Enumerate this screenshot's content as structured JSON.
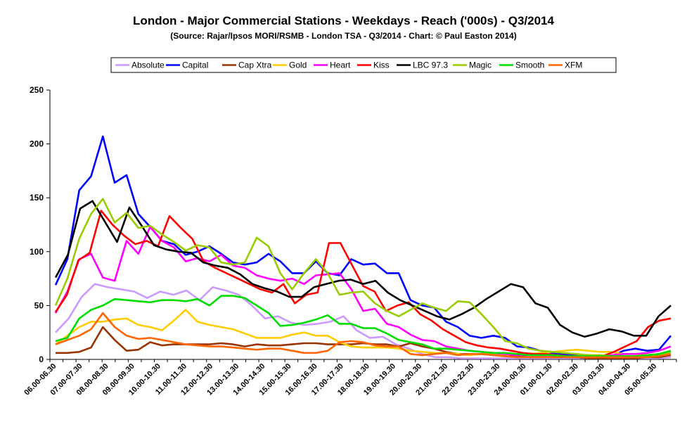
{
  "chart_data": {
    "type": "line",
    "title": "London - Major Commercial Stations - Weekdays - Reach ('000s) - Q3/2014",
    "subtitle": "(Source: Rajar/Ipsos MORI/RSMB - London TSA - Q3/2014 - Chart: © Paul Easton 2014)",
    "xlabel": "",
    "ylabel": "",
    "ylim": [
      0,
      250
    ],
    "yticks": [
      0,
      50,
      100,
      150,
      200,
      250
    ],
    "grid": false,
    "legend": "top",
    "x_tick_labels": [
      "06.00-06.30",
      "07.00-07.30",
      "08.00-08.30",
      "09.00-09.30",
      "10.00-10.30",
      "11.00-11.30",
      "12.00-12.30",
      "13.00-13.30",
      "14.00-14.30",
      "15.00-15.30",
      "16.00-16.30",
      "17.00-17.30",
      "18.00-18.30",
      "19.00-19.30",
      "20.00-20.30",
      "21.00-21.30",
      "22.00-22.30",
      "23.00-23.30",
      "24.00-00.30",
      "01.00-01.30",
      "02.00-02.30",
      "03.00-03.30",
      "04.00-04.30",
      "05.00-05.30"
    ],
    "series": [
      {
        "name": "Absolute",
        "color": "#cc99ff",
        "values": [
          25,
          38,
          58,
          70,
          67,
          65,
          63,
          57,
          63,
          60,
          64,
          55,
          67,
          64,
          60,
          50,
          38,
          40,
          34,
          32,
          33,
          35,
          40,
          27,
          20,
          21,
          14,
          10,
          5,
          2,
          2,
          1,
          1,
          1,
          1,
          1,
          1,
          1,
          1,
          1,
          1,
          1,
          1,
          1,
          1,
          1,
          1,
          2
        ]
      },
      {
        "name": "Capital",
        "color": "#0000ff",
        "values": [
          69,
          93,
          157,
          170,
          207,
          164,
          171,
          135,
          123,
          110,
          107,
          97,
          100,
          105,
          98,
          90,
          88,
          90,
          98,
          91,
          80,
          80,
          91,
          80,
          78,
          93,
          88,
          89,
          80,
          80,
          55,
          50,
          48,
          35,
          30,
          22,
          20,
          22,
          20,
          12,
          11,
          8,
          6,
          5,
          4,
          4,
          3,
          3,
          8,
          10,
          8,
          9,
          22
        ]
      },
      {
        "name": "Cap Xtra",
        "color": "#993300",
        "values": [
          6,
          6,
          7,
          11,
          30,
          18,
          8,
          9,
          16,
          13,
          14,
          14,
          14,
          14,
          15,
          14,
          12,
          14,
          13,
          13,
          14,
          15,
          15,
          14,
          14,
          14,
          15,
          14,
          14,
          12,
          15,
          12,
          10,
          7,
          5,
          5,
          5,
          4,
          3,
          3,
          2,
          2,
          2,
          2,
          2,
          1,
          1,
          1,
          1,
          1,
          2,
          2,
          4
        ]
      },
      {
        "name": "Gold",
        "color": "#ffcc00",
        "values": [
          14,
          22,
          30,
          35,
          35,
          37,
          38,
          32,
          30,
          27,
          36,
          46,
          35,
          32,
          30,
          28,
          24,
          20,
          20,
          20,
          23,
          25,
          22,
          22,
          16,
          12,
          11,
          11,
          11,
          10,
          8,
          7,
          6,
          6,
          5,
          4,
          5,
          5,
          4,
          5,
          5,
          6,
          7,
          8,
          9,
          8,
          7,
          7,
          5,
          5,
          4,
          5,
          6
        ]
      },
      {
        "name": "Heart",
        "color": "#ff00ff",
        "values": [
          43,
          63,
          93,
          98,
          76,
          73,
          110,
          98,
          123,
          110,
          104,
          91,
          94,
          91,
          97,
          87,
          85,
          78,
          75,
          73,
          75,
          70,
          78,
          79,
          80,
          65,
          45,
          47,
          33,
          30,
          23,
          18,
          17,
          12,
          10,
          8,
          7,
          6,
          5,
          4,
          4,
          3,
          3,
          3,
          3,
          3,
          3,
          4,
          5,
          5,
          6,
          8,
          12
        ]
      },
      {
        "name": "Kiss",
        "color": "#ff0000",
        "values": [
          44,
          60,
          92,
          99,
          138,
          125,
          115,
          107,
          110,
          105,
          133,
          122,
          112,
          91,
          85,
          80,
          75,
          70,
          65,
          62,
          70,
          52,
          60,
          62,
          108,
          108,
          88,
          68,
          63,
          45,
          50,
          53,
          42,
          36,
          28,
          22,
          16,
          13,
          11,
          10,
          8,
          6,
          5,
          5,
          4,
          3,
          3,
          3,
          3,
          7,
          12,
          17,
          30,
          36,
          38
        ]
      },
      {
        "name": "LBC 97.3",
        "color": "#000000",
        "values": [
          76,
          97,
          140,
          147,
          128,
          109,
          141,
          124,
          106,
          102,
          100,
          99,
          90,
          87,
          85,
          79,
          70,
          66,
          63,
          58,
          58,
          67,
          70,
          73,
          74,
          70,
          73,
          62,
          55,
          50,
          45,
          40,
          37,
          42,
          48,
          56,
          63,
          70,
          67,
          52,
          48,
          32,
          25,
          21,
          24,
          28,
          26,
          22,
          22,
          40,
          50
        ]
      },
      {
        "name": "Magic",
        "color": "#99cc00",
        "values": [
          50,
          75,
          112,
          135,
          149,
          127,
          136,
          122,
          124,
          116,
          109,
          101,
          106,
          104,
          90,
          88,
          90,
          113,
          105,
          80,
          65,
          80,
          93,
          80,
          60,
          62,
          63,
          52,
          45,
          40,
          46,
          52,
          48,
          45,
          54,
          53,
          42,
          30,
          17,
          15,
          10,
          8,
          7,
          6,
          5,
          4,
          4,
          3,
          3,
          3,
          3,
          4,
          7
        ]
      },
      {
        "name": "Smooth",
        "color": "#00dd00",
        "values": [
          17,
          20,
          38,
          46,
          50,
          56,
          55,
          54,
          53,
          55,
          55,
          54,
          56,
          50,
          59,
          59,
          57,
          50,
          43,
          31,
          32,
          34,
          37,
          41,
          33,
          33,
          29,
          29,
          24,
          18,
          16,
          14,
          10,
          10,
          9,
          8,
          7,
          6,
          6,
          5,
          4,
          4,
          4,
          3,
          3,
          3,
          3,
          3,
          3,
          3,
          4,
          5,
          8
        ]
      },
      {
        "name": "XFM",
        "color": "#ff6600",
        "values": [
          14,
          18,
          22,
          28,
          43,
          30,
          22,
          19,
          20,
          18,
          16,
          14,
          13,
          12,
          12,
          11,
          10,
          9,
          10,
          10,
          8,
          6,
          6,
          8,
          16,
          17,
          16,
          13,
          12,
          12,
          5,
          4,
          5,
          6,
          4,
          5,
          5,
          4,
          3,
          2,
          2,
          2,
          2,
          2,
          2,
          2,
          2,
          2,
          2,
          2,
          2,
          3,
          5
        ]
      }
    ]
  }
}
